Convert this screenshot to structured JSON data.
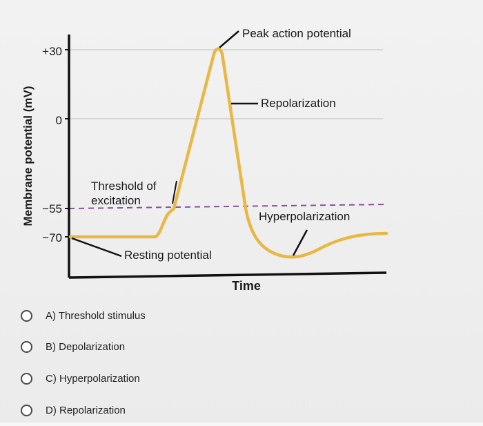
{
  "figure": {
    "ylabel": "Membrane potential (mV)",
    "xlabel": "Time",
    "ticks": [
      "+30",
      "0",
      "−55",
      "−70"
    ],
    "annotations": {
      "peak": "Peak action potential",
      "repolarization": "Repolarization",
      "threshold_line1": "Threshold of",
      "threshold_line2": "excitation",
      "hyperpolarization": "Hyperpolarization",
      "resting": "Resting potential"
    },
    "colors": {
      "trace": "#e8b844",
      "threshold_line": "#8a4f9e",
      "axis": "#111111",
      "gridline": "#bbbbbb"
    }
  },
  "chart_data": {
    "type": "line",
    "xlabel": "Time",
    "ylabel": "Membrane potential (mV)",
    "yticks": [
      30,
      0,
      -55,
      -70
    ],
    "ylim": [
      -85,
      40
    ],
    "series": [
      {
        "values": [
          -70,
          -70,
          -70,
          -68,
          -60,
          -55,
          -20,
          10,
          30,
          28,
          10,
          -20,
          -55,
          -75,
          -80,
          -80,
          -77,
          -73,
          -70,
          -70
        ]
      }
    ]
  },
  "question": {
    "options": [
      {
        "label": "A) Threshold stimulus"
      },
      {
        "label": "B) Depolarization"
      },
      {
        "label": "C) Hyperpolarization"
      },
      {
        "label": "D) Repolarization"
      }
    ]
  }
}
